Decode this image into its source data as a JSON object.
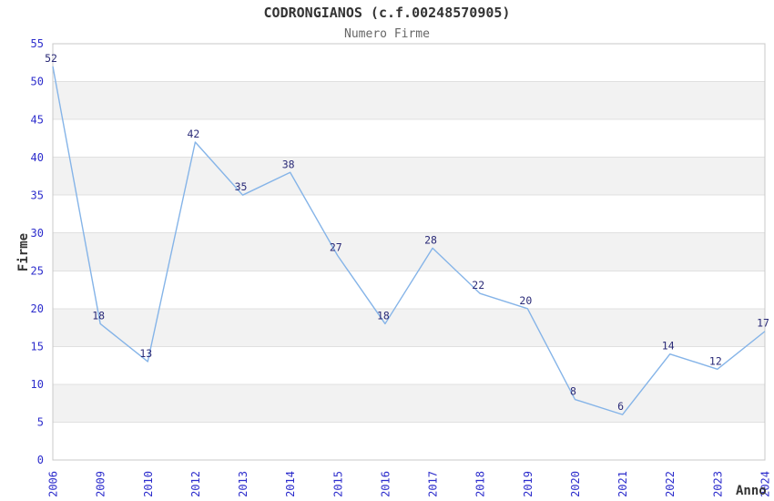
{
  "chart_data": {
    "type": "line",
    "title": "CODRONGIANOS (c.f.00248570905)",
    "subtitle": "Numero Firme",
    "xlabel": "Anno",
    "ylabel": "Firme",
    "categories": [
      "2006",
      "2009",
      "2010",
      "2012",
      "2013",
      "2014",
      "2015",
      "2016",
      "2017",
      "2018",
      "2019",
      "2020",
      "2021",
      "2022",
      "2023",
      "2024"
    ],
    "series": [
      {
        "name": "Numero Firme",
        "values": [
          52,
          18,
          13,
          42,
          35,
          38,
          27,
          18,
          28,
          22,
          20,
          8,
          6,
          14,
          12,
          17
        ]
      }
    ],
    "ylim": [
      0,
      55
    ],
    "ytick_step": 5,
    "yticks": [
      0,
      5,
      10,
      15,
      20,
      25,
      30,
      35,
      40,
      45,
      50,
      55
    ],
    "grid": "horizontal-lines-with-alternating-bands",
    "legend_position": "none",
    "point_labels_visible": true,
    "colors": {
      "line": "#85b4e8",
      "point_label": "#2b2b78",
      "tick_label": "#2d2dcc",
      "title": "#333333",
      "subtitle": "#666666",
      "axis_title": "#333333",
      "band_fill": "#f2f2f2",
      "gridline": "#e0e0e0",
      "plot_border": "#c8c8c8",
      "background": "#ffffff"
    }
  }
}
